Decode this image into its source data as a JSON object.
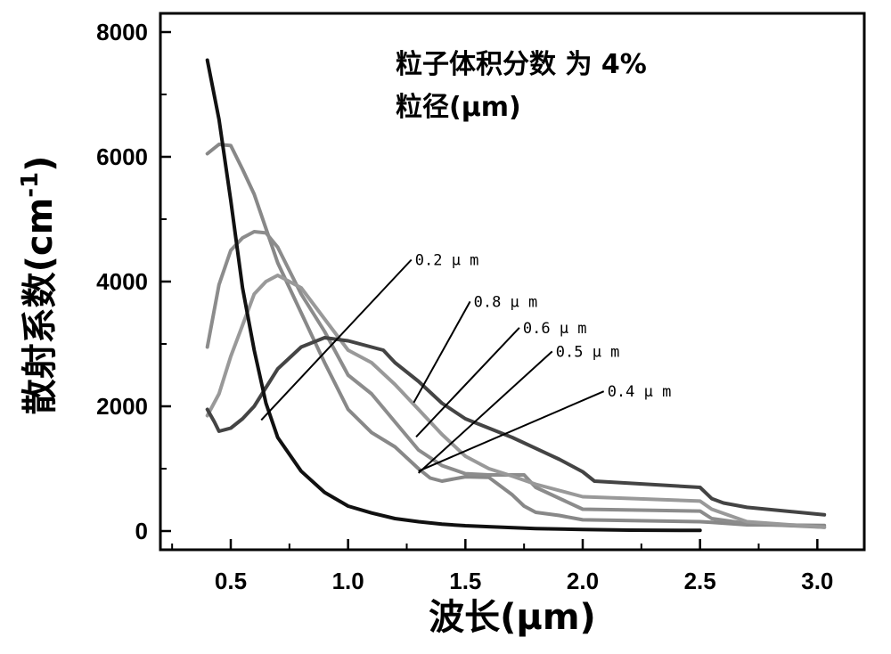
{
  "chart_data": {
    "type": "line",
    "title": "",
    "xlabel": "波长(μm)",
    "ylabel": "散射系数(cm-1)",
    "ylabel_main": "散射系数(cm",
    "ylabel_sup": "-1",
    "ylabel_close": ")",
    "xlim": [
      0.2,
      3.2
    ],
    "ylim": [
      -300,
      8300
    ],
    "xticks": [
      0.5,
      1.0,
      1.5,
      2.0,
      2.5,
      3.0
    ],
    "xtick_labels": [
      "0.5",
      "1.0",
      "1.5",
      "2.0",
      "2.5",
      "3.0"
    ],
    "yticks": [
      0,
      2000,
      4000,
      6000,
      8000
    ],
    "ytick_labels": [
      "0",
      "2000",
      "4000",
      "6000",
      "8000"
    ],
    "grid": false,
    "annotations": [
      "粒子体积分数 为 4%",
      "粒径(μm)"
    ],
    "series": [
      {
        "label": "0.2μm",
        "color": "#111111",
        "x": [
          0.4,
          0.45,
          0.5,
          0.55,
          0.6,
          0.65,
          0.7,
          0.8,
          0.9,
          1.0,
          1.1,
          1.2,
          1.3,
          1.4,
          1.5,
          1.6,
          1.8,
          2.0,
          2.2,
          2.5
        ],
        "y": [
          7550,
          6600,
          5300,
          3900,
          2900,
          2050,
          1500,
          960,
          620,
          400,
          290,
          200,
          150,
          110,
          85,
          70,
          40,
          25,
          15,
          10
        ]
      },
      {
        "label": "0.4μm",
        "color": "#888888",
        "x": [
          0.4,
          0.45,
          0.5,
          0.55,
          0.6,
          0.7,
          0.8,
          0.9,
          1.0,
          1.1,
          1.2,
          1.3,
          1.35,
          1.4,
          1.5,
          1.6,
          1.7,
          1.75,
          1.8,
          1.9,
          2.0,
          2.5,
          2.55,
          2.7,
          3.03
        ],
        "y": [
          6050,
          6200,
          6180,
          5800,
          5400,
          4300,
          3500,
          2700,
          1950,
          1580,
          1350,
          1000,
          850,
          800,
          870,
          860,
          580,
          400,
          300,
          250,
          180,
          150,
          140,
          100,
          90
        ]
      },
      {
        "label": "0.5μm",
        "color": "#8c8c8c",
        "x": [
          0.4,
          0.45,
          0.5,
          0.55,
          0.6,
          0.65,
          0.7,
          0.8,
          0.9,
          1.0,
          1.1,
          1.2,
          1.3,
          1.4,
          1.5,
          1.6,
          1.7,
          1.75,
          1.8,
          2.0,
          2.5,
          2.55,
          2.7,
          3.03
        ],
        "y": [
          2950,
          3950,
          4500,
          4700,
          4800,
          4780,
          4550,
          3800,
          3200,
          2500,
          2200,
          1750,
          1300,
          1050,
          920,
          900,
          900,
          900,
          700,
          350,
          320,
          200,
          120,
          60
        ]
      },
      {
        "label": "0.6μm",
        "color": "#999999",
        "x": [
          0.4,
          0.45,
          0.5,
          0.55,
          0.6,
          0.65,
          0.7,
          0.8,
          0.9,
          1.0,
          1.1,
          1.2,
          1.3,
          1.4,
          1.5,
          1.6,
          1.7,
          1.8,
          2.0,
          2.5,
          2.55,
          2.7,
          3.03
        ],
        "y": [
          1850,
          2200,
          2800,
          3300,
          3800,
          4000,
          4100,
          3900,
          3400,
          2900,
          2700,
          2350,
          1950,
          1550,
          1200,
          1000,
          880,
          750,
          550,
          480,
          350,
          150,
          60
        ]
      },
      {
        "label": "0.8μm",
        "color": "#444444",
        "x": [
          0.4,
          0.43,
          0.45,
          0.5,
          0.55,
          0.6,
          0.7,
          0.8,
          0.9,
          1.0,
          1.1,
          1.15,
          1.2,
          1.3,
          1.4,
          1.5,
          1.7,
          1.9,
          2.0,
          2.05,
          2.5,
          2.55,
          2.6,
          2.7,
          3.03
        ],
        "y": [
          1950,
          1750,
          1600,
          1650,
          1800,
          2000,
          2600,
          2950,
          3100,
          3050,
          2950,
          2900,
          2700,
          2400,
          2050,
          1800,
          1500,
          1150,
          950,
          800,
          700,
          520,
          450,
          380,
          260
        ]
      }
    ]
  }
}
